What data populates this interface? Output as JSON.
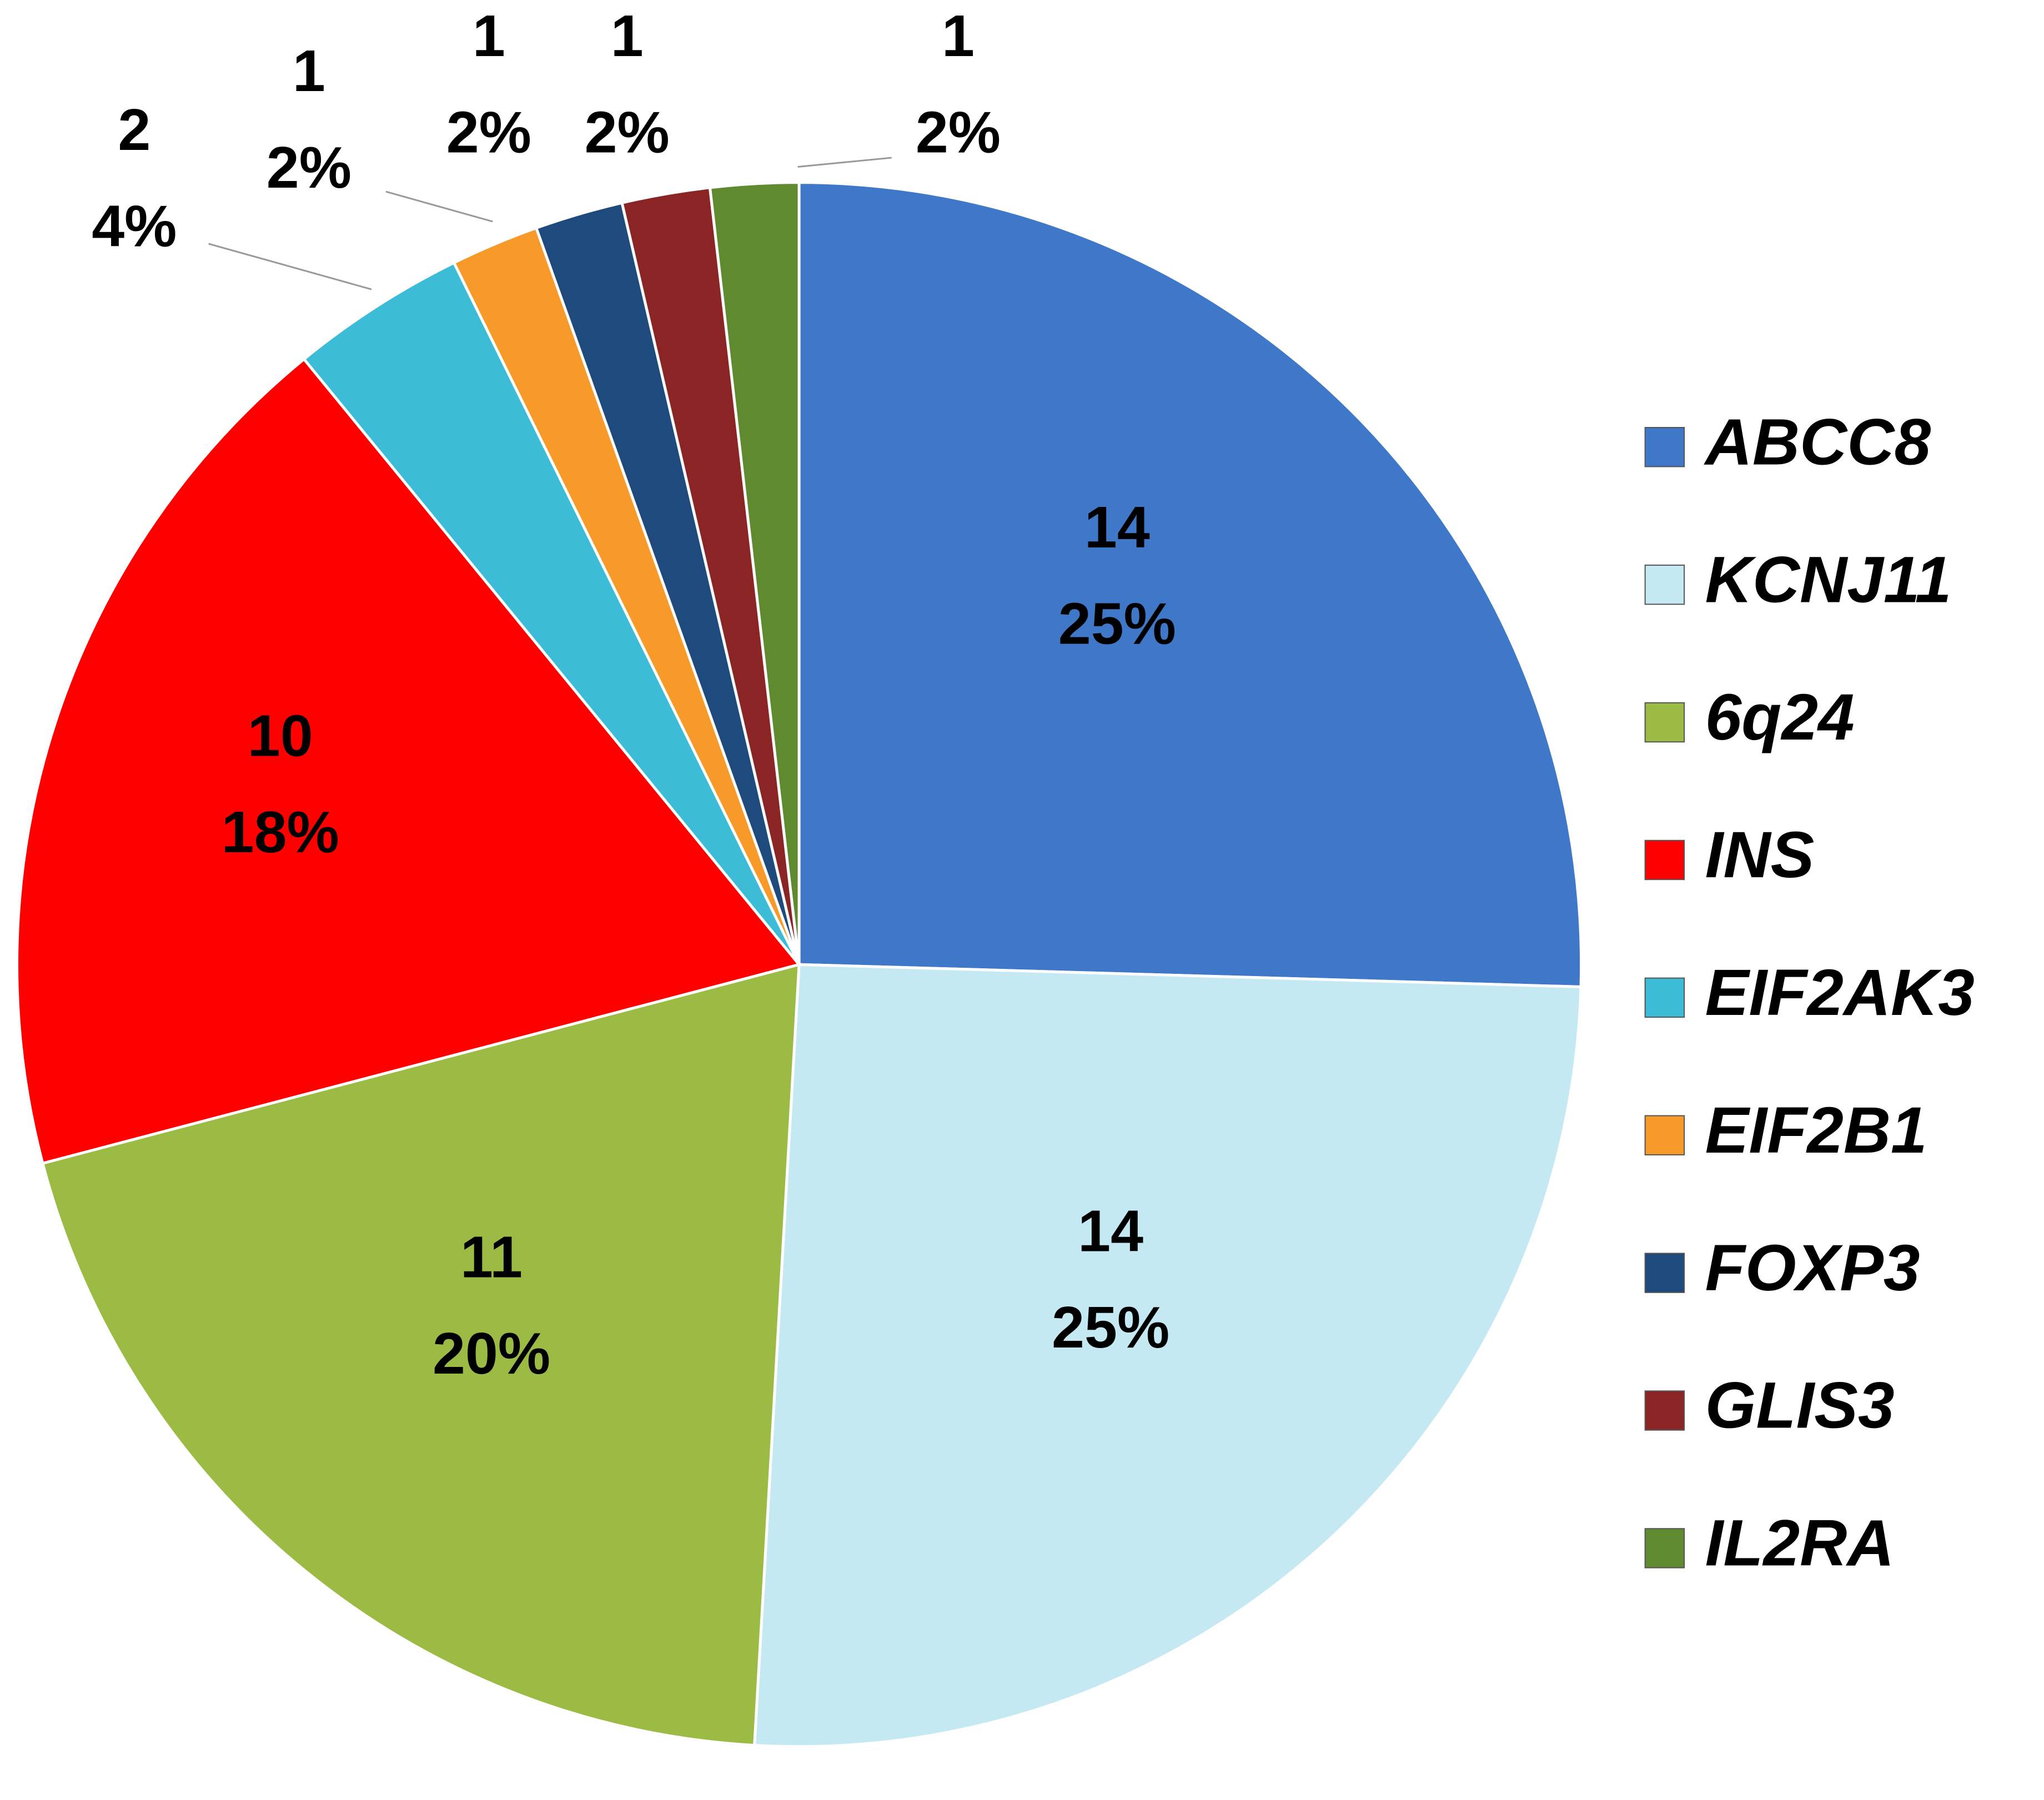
{
  "chart_data": {
    "type": "pie",
    "categories": [
      "ABCC8",
      "KCNJ11",
      "6q24",
      "INS",
      "EIF2AK3",
      "EIF2B1",
      "FOXP3",
      "GLIS3",
      "IL2RA"
    ],
    "values": [
      14,
      14,
      11,
      10,
      2,
      1,
      1,
      1,
      1
    ],
    "percent_labels": [
      "25%",
      "25%",
      "20%",
      "18%",
      "4%",
      "2%",
      "2%",
      "2%",
      "2%"
    ],
    "colors": [
      "#3f78c8",
      "#c5e9f3",
      "#9bbb45",
      "#ff0000",
      "#3dbcd8",
      "#f79a2a",
      "#1f4a7e",
      "#8b2424",
      "#5f8a30"
    ],
    "legend": "right"
  }
}
